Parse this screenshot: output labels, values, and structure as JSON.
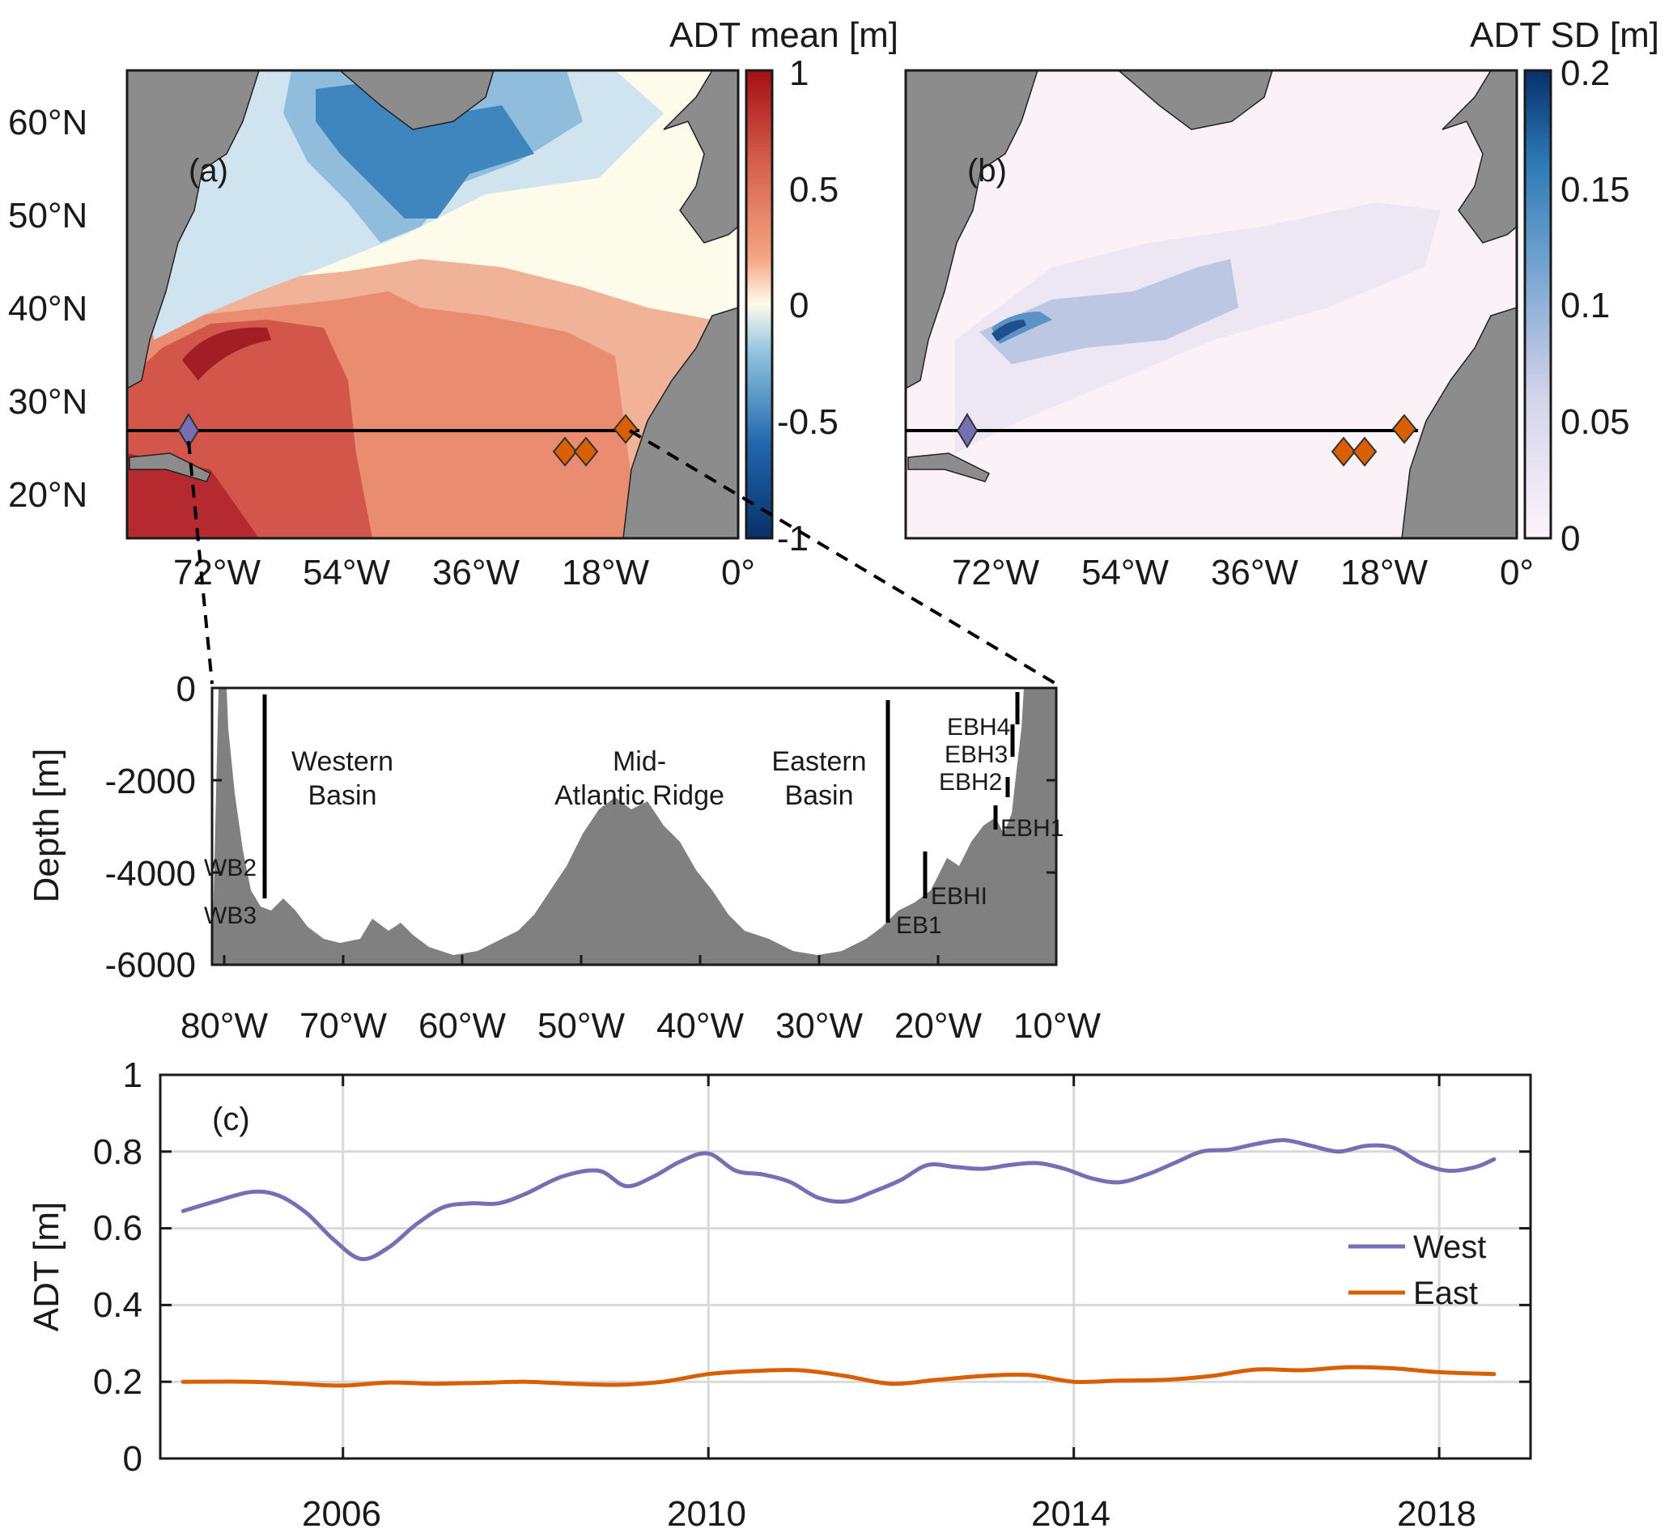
{
  "colors": {
    "land": "#8c8c8c",
    "west": "#7570b3",
    "east": "#d95f02",
    "section_line": "#000000"
  },
  "panel_a": {
    "label": "(a)",
    "colorbar_title": "ADT mean [m]",
    "colorbar_ticks": [
      "1",
      "0.5",
      "0",
      "-0.5",
      "-1"
    ],
    "colorbar_range": [
      -1,
      1
    ]
  },
  "panel_b": {
    "label": "(b)",
    "colorbar_title": "ADT SD [m]",
    "colorbar_ticks": [
      "0.2",
      "0.15",
      "0.1",
      "0.05",
      "0"
    ],
    "colorbar_range": [
      0,
      0.2
    ]
  },
  "map_axes": {
    "lat_ticks": [
      "60°N",
      "50°N",
      "40°N",
      "30°N",
      "20°N"
    ],
    "lon_ticks": [
      "72°W",
      "54°W",
      "36°W",
      "18°W",
      "0°"
    ]
  },
  "section": {
    "ylabel": "Depth [m]",
    "yticks": [
      "0",
      "-2000",
      "-4000",
      "-6000"
    ],
    "xticks": [
      "80°W",
      "70°W",
      "60°W",
      "50°W",
      "40°W",
      "30°W",
      "20°W",
      "10°W"
    ],
    "regions": {
      "western_1": "Western",
      "western_2": "Basin",
      "ridge_1": "Mid-",
      "ridge_2": "Atlantic Ridge",
      "eastern_1": "Eastern",
      "eastern_2": "Basin"
    },
    "moorings": {
      "wb2": "WB2",
      "wb3": "WB3",
      "eb1": "EB1",
      "ebhi": "EBHI",
      "ebh1": "EBH1",
      "ebh2": "EBH2",
      "ebh3": "EBH3",
      "ebh4": "EBH4"
    }
  },
  "chart_data": {
    "type": "line",
    "label": "(c)",
    "ylabel": "ADT [m]",
    "ylim": [
      0,
      1
    ],
    "xlim": [
      2004,
      2019
    ],
    "yticks": [
      "0",
      "0.2",
      "0.4",
      "0.6",
      "0.8",
      "1"
    ],
    "xticks": [
      "2006",
      "2010",
      "2014",
      "2018"
    ],
    "grid": true,
    "legend_position": "right",
    "series": [
      {
        "name": "West",
        "x": [
          2004.25,
          2004.6,
          2005.0,
          2005.3,
          2005.6,
          2005.9,
          2006.2,
          2006.5,
          2006.8,
          2007.1,
          2007.4,
          2007.7,
          2008.0,
          2008.4,
          2008.8,
          2009.1,
          2009.4,
          2009.7,
          2010.0,
          2010.3,
          2010.6,
          2010.9,
          2011.2,
          2011.5,
          2011.8,
          2012.1,
          2012.4,
          2012.7,
          2013.0,
          2013.3,
          2013.6,
          2013.9,
          2014.2,
          2014.5,
          2014.8,
          2015.1,
          2015.4,
          2015.7,
          2016.0,
          2016.3,
          2016.6,
          2016.9,
          2017.2,
          2017.5,
          2017.8,
          2018.1,
          2018.4,
          2018.6
        ],
        "values": [
          0.645,
          0.67,
          0.695,
          0.685,
          0.64,
          0.57,
          0.52,
          0.55,
          0.61,
          0.655,
          0.665,
          0.665,
          0.69,
          0.735,
          0.75,
          0.71,
          0.735,
          0.775,
          0.795,
          0.75,
          0.74,
          0.72,
          0.68,
          0.67,
          0.695,
          0.725,
          0.765,
          0.76,
          0.755,
          0.765,
          0.77,
          0.755,
          0.73,
          0.72,
          0.74,
          0.77,
          0.8,
          0.805,
          0.82,
          0.83,
          0.815,
          0.8,
          0.815,
          0.81,
          0.77,
          0.75,
          0.76,
          0.78
        ]
      },
      {
        "name": "East",
        "x": [
          2004.25,
          2005.0,
          2005.5,
          2006.0,
          2006.5,
          2007.0,
          2007.5,
          2008.0,
          2008.5,
          2009.0,
          2009.5,
          2010.0,
          2010.5,
          2011.0,
          2011.5,
          2012.0,
          2012.5,
          2013.0,
          2013.5,
          2014.0,
          2014.5,
          2015.0,
          2015.5,
          2016.0,
          2016.5,
          2017.0,
          2017.5,
          2018.0,
          2018.6
        ],
        "values": [
          0.2,
          0.2,
          0.195,
          0.19,
          0.198,
          0.195,
          0.197,
          0.2,
          0.195,
          0.192,
          0.2,
          0.22,
          0.228,
          0.23,
          0.215,
          0.195,
          0.205,
          0.215,
          0.218,
          0.2,
          0.203,
          0.205,
          0.215,
          0.232,
          0.23,
          0.238,
          0.235,
          0.225,
          0.22
        ]
      }
    ]
  }
}
